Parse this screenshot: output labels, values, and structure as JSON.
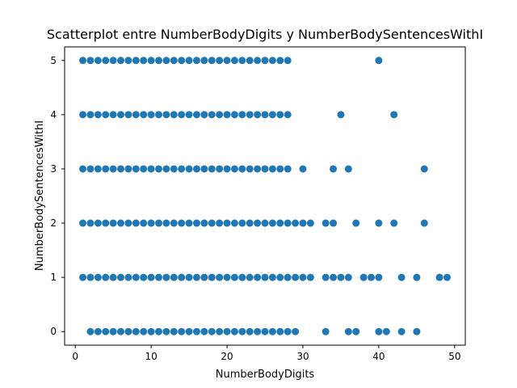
{
  "chart_data": {
    "type": "scatter",
    "title": "Scatterplot entre NumberBodyDigits y NumberBodySentencesWithI",
    "xlabel": "NumberBodyDigits",
    "ylabel": "NumberBodySentencesWithI",
    "xlim": [
      -1.4,
      51.4
    ],
    "ylim": [
      -0.25,
      5.25
    ],
    "xticks": [
      0,
      10,
      20,
      30,
      40,
      50
    ],
    "yticks": [
      0,
      1,
      2,
      3,
      4,
      5
    ],
    "grid": false,
    "legend": "none",
    "marker_color": "#1f77b4",
    "series": [
      {
        "points": [
          [
            1,
            5
          ],
          [
            2,
            5
          ],
          [
            3,
            5
          ],
          [
            4,
            5
          ],
          [
            5,
            5
          ],
          [
            6,
            5
          ],
          [
            7,
            5
          ],
          [
            8,
            5
          ],
          [
            9,
            5
          ],
          [
            10,
            5
          ],
          [
            11,
            5
          ],
          [
            12,
            5
          ],
          [
            13,
            5
          ],
          [
            14,
            5
          ],
          [
            15,
            5
          ],
          [
            16,
            5
          ],
          [
            17,
            5
          ],
          [
            18,
            5
          ],
          [
            19,
            5
          ],
          [
            20,
            5
          ],
          [
            21,
            5
          ],
          [
            22,
            5
          ],
          [
            23,
            5
          ],
          [
            24,
            5
          ],
          [
            25,
            5
          ],
          [
            26,
            5
          ],
          [
            27,
            5
          ],
          [
            28,
            5
          ],
          [
            40,
            5
          ],
          [
            1,
            4
          ],
          [
            2,
            4
          ],
          [
            3,
            4
          ],
          [
            4,
            4
          ],
          [
            5,
            4
          ],
          [
            6,
            4
          ],
          [
            7,
            4
          ],
          [
            8,
            4
          ],
          [
            9,
            4
          ],
          [
            10,
            4
          ],
          [
            11,
            4
          ],
          [
            12,
            4
          ],
          [
            13,
            4
          ],
          [
            14,
            4
          ],
          [
            15,
            4
          ],
          [
            16,
            4
          ],
          [
            17,
            4
          ],
          [
            18,
            4
          ],
          [
            19,
            4
          ],
          [
            20,
            4
          ],
          [
            21,
            4
          ],
          [
            22,
            4
          ],
          [
            23,
            4
          ],
          [
            24,
            4
          ],
          [
            25,
            4
          ],
          [
            26,
            4
          ],
          [
            27,
            4
          ],
          [
            28,
            4
          ],
          [
            35,
            4
          ],
          [
            42,
            4
          ],
          [
            1,
            3
          ],
          [
            2,
            3
          ],
          [
            3,
            3
          ],
          [
            4,
            3
          ],
          [
            5,
            3
          ],
          [
            6,
            3
          ],
          [
            7,
            3
          ],
          [
            8,
            3
          ],
          [
            9,
            3
          ],
          [
            10,
            3
          ],
          [
            11,
            3
          ],
          [
            12,
            3
          ],
          [
            13,
            3
          ],
          [
            14,
            3
          ],
          [
            15,
            3
          ],
          [
            16,
            3
          ],
          [
            17,
            3
          ],
          [
            18,
            3
          ],
          [
            19,
            3
          ],
          [
            20,
            3
          ],
          [
            21,
            3
          ],
          [
            22,
            3
          ],
          [
            23,
            3
          ],
          [
            24,
            3
          ],
          [
            25,
            3
          ],
          [
            26,
            3
          ],
          [
            27,
            3
          ],
          [
            28,
            3
          ],
          [
            30,
            3
          ],
          [
            34,
            3
          ],
          [
            36,
            3
          ],
          [
            46,
            3
          ],
          [
            1,
            2
          ],
          [
            2,
            2
          ],
          [
            3,
            2
          ],
          [
            4,
            2
          ],
          [
            5,
            2
          ],
          [
            6,
            2
          ],
          [
            7,
            2
          ],
          [
            8,
            2
          ],
          [
            9,
            2
          ],
          [
            10,
            2
          ],
          [
            11,
            2
          ],
          [
            12,
            2
          ],
          [
            13,
            2
          ],
          [
            14,
            2
          ],
          [
            15,
            2
          ],
          [
            16,
            2
          ],
          [
            17,
            2
          ],
          [
            18,
            2
          ],
          [
            19,
            2
          ],
          [
            20,
            2
          ],
          [
            21,
            2
          ],
          [
            22,
            2
          ],
          [
            23,
            2
          ],
          [
            24,
            2
          ],
          [
            25,
            2
          ],
          [
            26,
            2
          ],
          [
            27,
            2
          ],
          [
            28,
            2
          ],
          [
            29,
            2
          ],
          [
            30,
            2
          ],
          [
            31,
            2
          ],
          [
            33,
            2
          ],
          [
            34,
            2
          ],
          [
            37,
            2
          ],
          [
            40,
            2
          ],
          [
            42,
            2
          ],
          [
            46,
            2
          ],
          [
            1,
            1
          ],
          [
            2,
            1
          ],
          [
            3,
            1
          ],
          [
            4,
            1
          ],
          [
            5,
            1
          ],
          [
            6,
            1
          ],
          [
            7,
            1
          ],
          [
            8,
            1
          ],
          [
            9,
            1
          ],
          [
            10,
            1
          ],
          [
            11,
            1
          ],
          [
            12,
            1
          ],
          [
            13,
            1
          ],
          [
            14,
            1
          ],
          [
            15,
            1
          ],
          [
            16,
            1
          ],
          [
            17,
            1
          ],
          [
            18,
            1
          ],
          [
            19,
            1
          ],
          [
            20,
            1
          ],
          [
            21,
            1
          ],
          [
            22,
            1
          ],
          [
            23,
            1
          ],
          [
            24,
            1
          ],
          [
            25,
            1
          ],
          [
            26,
            1
          ],
          [
            27,
            1
          ],
          [
            28,
            1
          ],
          [
            29,
            1
          ],
          [
            30,
            1
          ],
          [
            31,
            1
          ],
          [
            33,
            1
          ],
          [
            34,
            1
          ],
          [
            35,
            1
          ],
          [
            36,
            1
          ],
          [
            38,
            1
          ],
          [
            39,
            1
          ],
          [
            40,
            1
          ],
          [
            43,
            1
          ],
          [
            45,
            1
          ],
          [
            48,
            1
          ],
          [
            49,
            1
          ],
          [
            2,
            0
          ],
          [
            3,
            0
          ],
          [
            4,
            0
          ],
          [
            5,
            0
          ],
          [
            6,
            0
          ],
          [
            7,
            0
          ],
          [
            8,
            0
          ],
          [
            9,
            0
          ],
          [
            10,
            0
          ],
          [
            11,
            0
          ],
          [
            12,
            0
          ],
          [
            13,
            0
          ],
          [
            14,
            0
          ],
          [
            15,
            0
          ],
          [
            16,
            0
          ],
          [
            17,
            0
          ],
          [
            18,
            0
          ],
          [
            19,
            0
          ],
          [
            20,
            0
          ],
          [
            21,
            0
          ],
          [
            22,
            0
          ],
          [
            23,
            0
          ],
          [
            24,
            0
          ],
          [
            25,
            0
          ],
          [
            26,
            0
          ],
          [
            27,
            0
          ],
          [
            28,
            0
          ],
          [
            29,
            0
          ],
          [
            33,
            0
          ],
          [
            36,
            0
          ],
          [
            37,
            0
          ],
          [
            40,
            0
          ],
          [
            41,
            0
          ],
          [
            43,
            0
          ],
          [
            45,
            0
          ]
        ]
      }
    ]
  }
}
